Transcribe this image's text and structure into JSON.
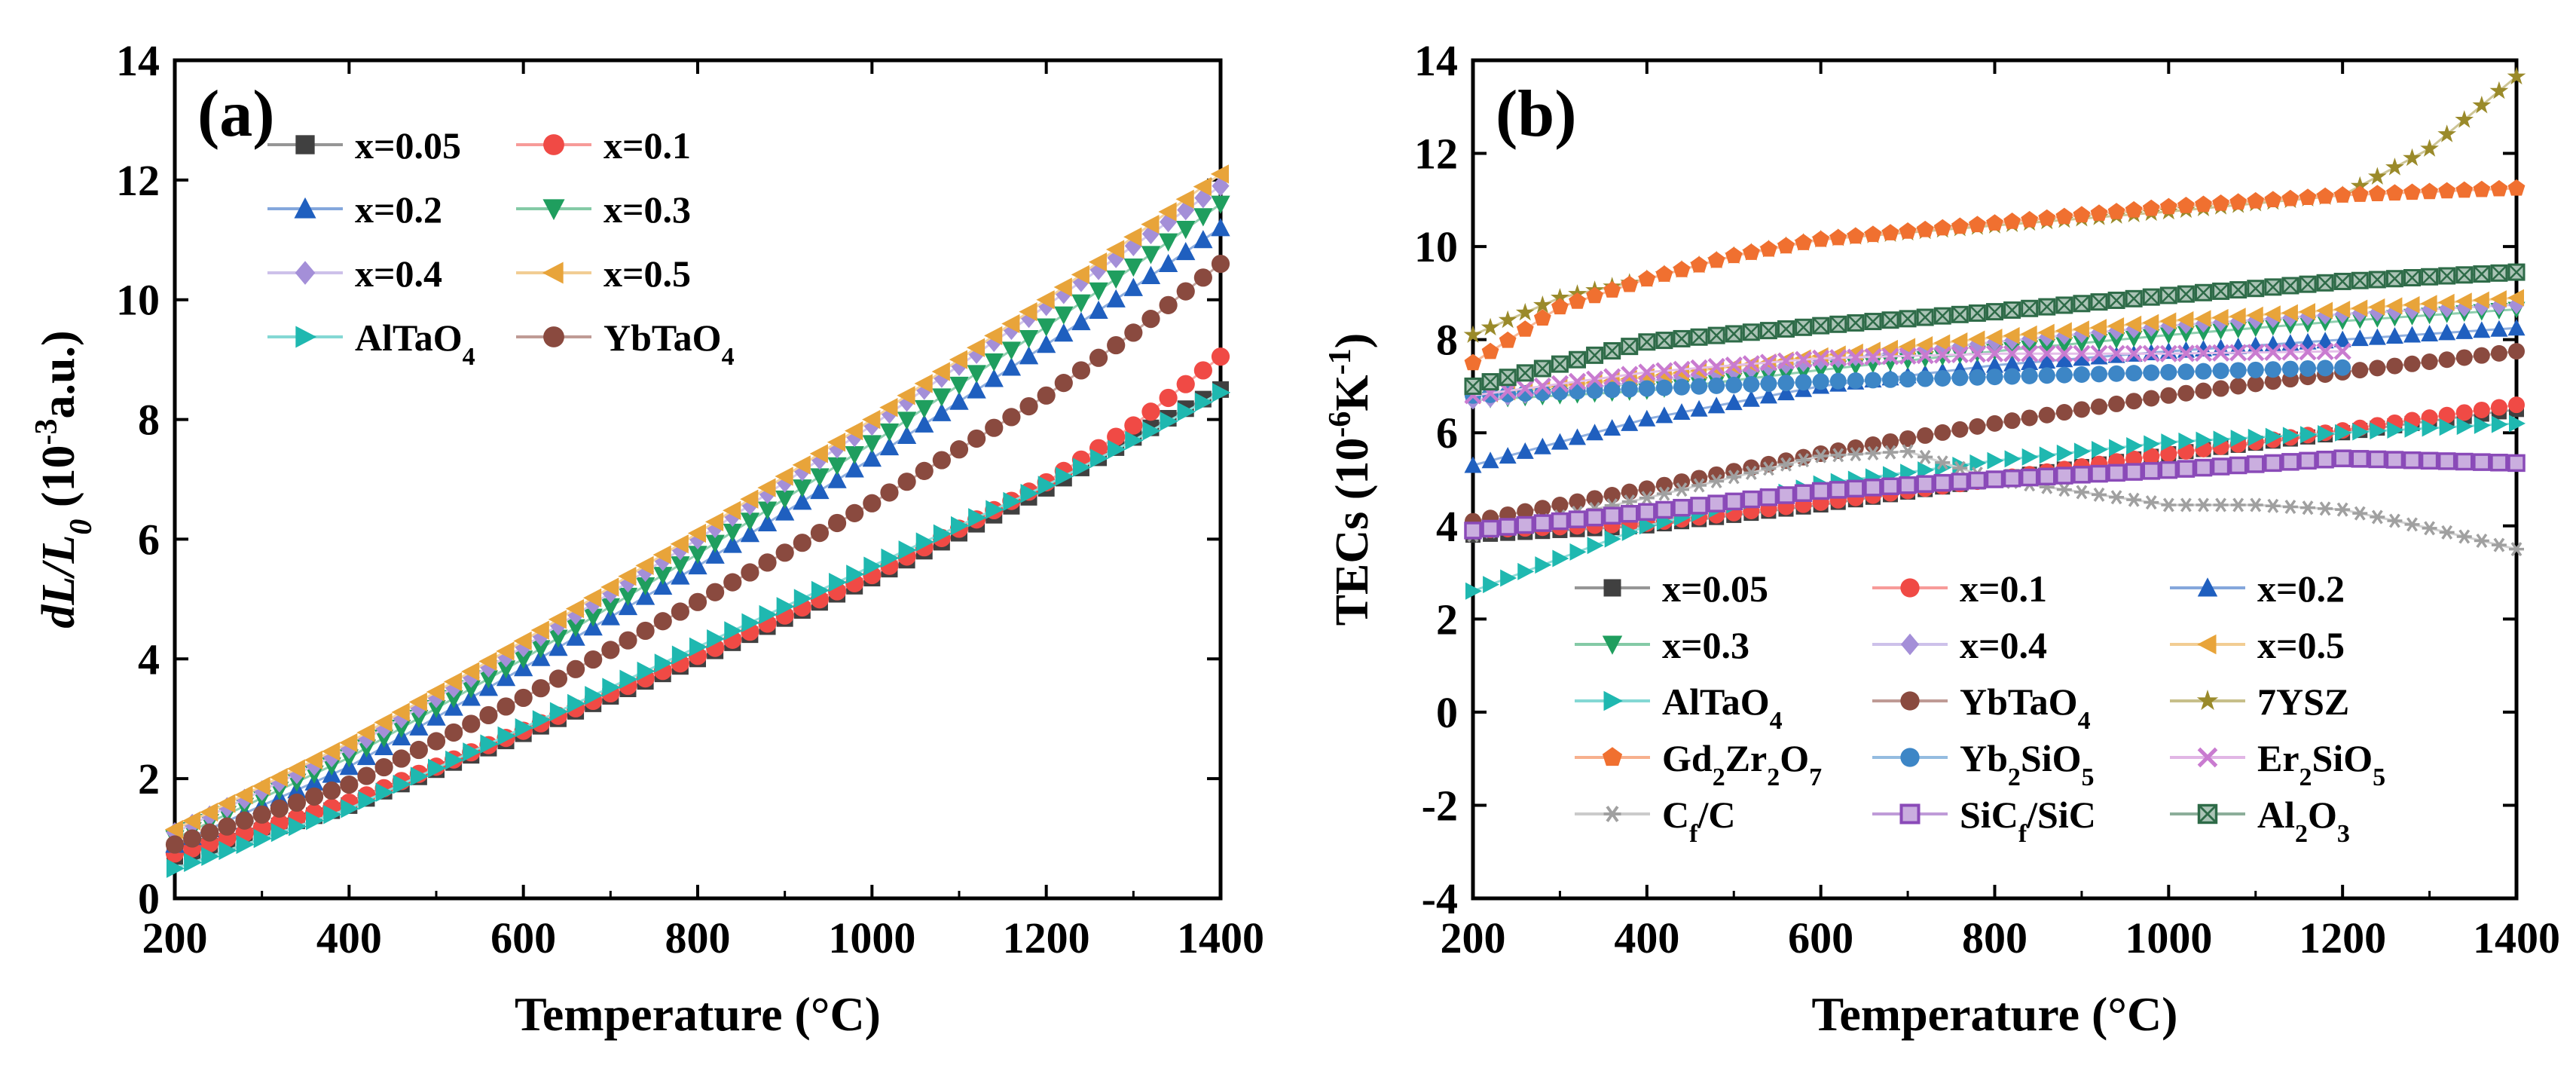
{
  "chart_data": [
    {
      "type": "scatter",
      "panel_label": "(a)",
      "xlabel": "Temperature (°C)",
      "ylabel_parts": [
        "dL",
        "/",
        "L",
        "0",
        " (10",
        "-3",
        "a.u.)"
      ],
      "xlim": [
        200,
        1400
      ],
      "ylim": [
        0,
        14
      ],
      "xticks": [
        200,
        400,
        600,
        800,
        1000,
        1200,
        1400
      ],
      "yticks": [
        0,
        2,
        4,
        6,
        8,
        10,
        12,
        14
      ],
      "legend_position": "top-left",
      "series": [
        {
          "name": "x=0.05",
          "color": "#404040",
          "marker": "square",
          "x": [
            200,
            400,
            600,
            800,
            1000,
            1200,
            1300,
            1400
          ],
          "y": [
            0.7,
            1.55,
            2.75,
            4.0,
            5.35,
            6.85,
            7.7,
            8.5
          ]
        },
        {
          "name": "x=0.1",
          "color": "#f04a45",
          "marker": "circle",
          "x": [
            200,
            400,
            600,
            800,
            1000,
            1200,
            1300,
            1400
          ],
          "y": [
            0.75,
            1.6,
            2.8,
            4.05,
            5.4,
            6.95,
            7.9,
            9.05
          ]
        },
        {
          "name": "x=0.2",
          "color": "#1f5fbf",
          "marker": "triangle-up",
          "x": [
            200,
            400,
            600,
            800,
            1000,
            1200,
            1300,
            1400
          ],
          "y": [
            0.9,
            2.2,
            3.85,
            5.55,
            7.35,
            9.25,
            10.2,
            11.2
          ]
        },
        {
          "name": "x=0.3",
          "color": "#1f9e5e",
          "marker": "triangle-down",
          "x": [
            200,
            400,
            600,
            800,
            1000,
            1200,
            1300,
            1400
          ],
          "y": [
            1.0,
            2.35,
            4.0,
            5.75,
            7.6,
            9.55,
            10.55,
            11.6
          ]
        },
        {
          "name": "x=0.4",
          "color": "#a48fd8",
          "marker": "diamond",
          "x": [
            200,
            400,
            600,
            800,
            1000,
            1200,
            1300,
            1400
          ],
          "y": [
            1.1,
            2.5,
            4.2,
            6.0,
            7.9,
            9.9,
            10.9,
            11.9
          ]
        },
        {
          "name": "x=0.5",
          "color": "#e8a43a",
          "marker": "triangle-left",
          "x": [
            200,
            400,
            600,
            800,
            1000,
            1200,
            1300,
            1400
          ],
          "y": [
            1.15,
            2.6,
            4.3,
            6.1,
            8.0,
            10.0,
            11.05,
            12.1
          ]
        },
        {
          "name": "AlTaO",
          "name_sub": "4",
          "color": "#1fb8b0",
          "marker": "triangle-right",
          "x": [
            200,
            400,
            600,
            800,
            1000,
            1200,
            1300,
            1400
          ],
          "y": [
            0.5,
            1.5,
            2.85,
            4.2,
            5.55,
            6.9,
            7.65,
            8.45
          ]
        },
        {
          "name": "YbTaO",
          "name_sub": "4",
          "color": "#8a4a3f",
          "marker": "circle",
          "x": [
            200,
            400,
            600,
            800,
            1000,
            1200,
            1300,
            1400
          ],
          "y": [
            0.9,
            1.9,
            3.35,
            4.95,
            6.6,
            8.4,
            9.45,
            10.6
          ]
        }
      ]
    },
    {
      "type": "scatter",
      "panel_label": "(b)",
      "xlabel": "Temperature (°C)",
      "ylabel_parts": [
        "TECs (10",
        "-6",
        "K",
        "-1",
        ")"
      ],
      "xlim": [
        200,
        1400
      ],
      "ylim": [
        -4,
        14
      ],
      "xticks": [
        200,
        400,
        600,
        800,
        1000,
        1200,
        1400
      ],
      "yticks": [
        -4,
        -2,
        0,
        2,
        4,
        6,
        8,
        10,
        12,
        14
      ],
      "legend_position": "bottom",
      "series": [
        {
          "name": "x=0.05",
          "color": "#404040",
          "marker": "square",
          "x": [
            200,
            400,
            600,
            800,
            1000,
            1200,
            1400
          ],
          "y": [
            3.8,
            4.0,
            4.45,
            5.0,
            5.55,
            6.0,
            6.5
          ]
        },
        {
          "name": "x=0.1",
          "color": "#f04a45",
          "marker": "circle",
          "x": [
            200,
            400,
            600,
            800,
            1000,
            1200,
            1400
          ],
          "y": [
            3.9,
            4.05,
            4.5,
            5.0,
            5.55,
            6.05,
            6.6
          ]
        },
        {
          "name": "x=0.2",
          "color": "#1f5fbf",
          "marker": "triangle-up",
          "x": [
            200,
            400,
            600,
            800,
            1000,
            1200,
            1400
          ],
          "y": [
            5.3,
            6.3,
            7.0,
            7.45,
            7.75,
            8.0,
            8.25
          ]
        },
        {
          "name": "x=0.3",
          "color": "#1f9e5e",
          "marker": "triangle-down",
          "x": [
            200,
            400,
            600,
            800,
            1000,
            1200,
            1400
          ],
          "y": [
            6.7,
            6.9,
            7.35,
            7.75,
            8.1,
            8.4,
            8.65
          ]
        },
        {
          "name": "x=0.4",
          "color": "#a48fd8",
          "marker": "diamond",
          "x": [
            200,
            400,
            600,
            800,
            1000,
            1200,
            1400
          ],
          "y": [
            6.7,
            7.1,
            7.55,
            7.95,
            8.3,
            8.55,
            8.75
          ]
        },
        {
          "name": "x=0.5",
          "color": "#e8a43a",
          "marker": "triangle-left",
          "x": [
            200,
            400,
            600,
            800,
            1000,
            1200,
            1400
          ],
          "y": [
            6.8,
            7.2,
            7.65,
            8.05,
            8.4,
            8.65,
            8.9
          ]
        },
        {
          "name": "AlTaO",
          "name_sub": "4",
          "color": "#1fb8b0",
          "marker": "triangle-right",
          "x": [
            200,
            400,
            600,
            800,
            1000,
            1200,
            1400
          ],
          "y": [
            2.6,
            4.0,
            4.9,
            5.4,
            5.8,
            6.0,
            6.2
          ]
        },
        {
          "name": "YbTaO",
          "name_sub": "4",
          "color": "#8a4a3f",
          "marker": "circle",
          "x": [
            200,
            400,
            600,
            800,
            1000,
            1200,
            1400
          ],
          "y": [
            4.1,
            4.8,
            5.55,
            6.2,
            6.8,
            7.3,
            7.75
          ]
        },
        {
          "name": "7YSZ",
          "color": "#9a8a2a",
          "marker": "star",
          "x": [
            200,
            300,
            400,
            500,
            600,
            800,
            1000,
            1200,
            1300,
            1400
          ],
          "y": [
            8.1,
            8.9,
            9.3,
            9.8,
            10.15,
            10.45,
            10.75,
            11.1,
            12.1,
            13.65
          ]
        },
        {
          "name": "Gd",
          "name_sub": "2",
          "name_mid": "Zr",
          "name_sub2": "2",
          "name_end": "O",
          "name_sub3": "7",
          "color": "#f07030",
          "marker": "pentagon",
          "x": [
            200,
            300,
            400,
            500,
            600,
            800,
            1000,
            1200,
            1400
          ],
          "y": [
            7.5,
            8.7,
            9.3,
            9.8,
            10.15,
            10.5,
            10.85,
            11.1,
            11.25
          ]
        },
        {
          "name": "Yb",
          "name_sub": "2",
          "name_end": "SiO",
          "name_sub3": "5",
          "color": "#3d86c6",
          "marker": "circle",
          "x": [
            200,
            400,
            600,
            800,
            1000,
            1200
          ],
          "y": [
            6.8,
            6.95,
            7.1,
            7.2,
            7.3,
            7.4
          ]
        },
        {
          "name": "Er",
          "name_sub": "2",
          "name_end": "SiO",
          "name_sub3": "5",
          "color": "#c97bd0",
          "marker": "cross",
          "x": [
            200,
            400,
            600,
            800,
            1000,
            1200
          ],
          "y": [
            6.8,
            7.3,
            7.6,
            7.7,
            7.7,
            7.75
          ]
        },
        {
          "name": "C",
          "name_sub": "f",
          "name_end": "/C",
          "color": "#a0a0a0",
          "marker": "asterisk",
          "x": [
            200,
            400,
            600,
            700,
            800,
            1000,
            1100,
            1200,
            1300,
            1400
          ],
          "y": [
            3.8,
            4.6,
            5.5,
            5.6,
            5.0,
            4.45,
            4.45,
            4.35,
            3.95,
            3.5
          ]
        },
        {
          "name": "SiC",
          "name_sub": "f",
          "name_end": "/SiC",
          "color": "#8a4ab8",
          "marker": "square-open",
          "x": [
            200,
            400,
            600,
            800,
            1000,
            1200,
            1400
          ],
          "y": [
            3.9,
            4.3,
            4.75,
            5.0,
            5.2,
            5.45,
            5.35
          ]
        },
        {
          "name": "Al",
          "name_sub": "2",
          "name_end": "O",
          "name_sub3": "3",
          "color": "#2e6b48",
          "marker": "square-x",
          "x": [
            200,
            400,
            600,
            800,
            1000,
            1200,
            1400
          ],
          "y": [
            7.0,
            7.95,
            8.3,
            8.6,
            8.95,
            9.25,
            9.45
          ]
        }
      ]
    }
  ]
}
